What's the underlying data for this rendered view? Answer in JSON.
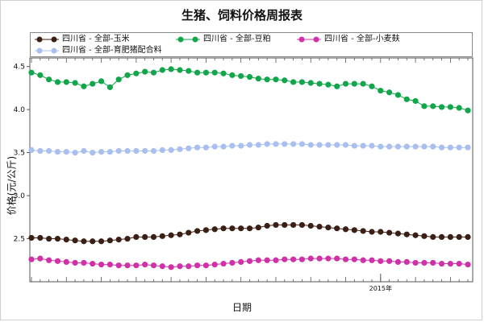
{
  "chart_data": {
    "type": "line",
    "title": "生猪、饲料价格周报表",
    "xlabel": "日期",
    "ylabel": "价格(元/公斤)",
    "ylim": [
      2.0,
      4.6
    ],
    "yticks": [
      "2.5",
      "3.0",
      "3.5",
      "4.0",
      "4.5"
    ],
    "xticks": [
      {
        "label": "2015年",
        "index": 40
      }
    ],
    "grid": false,
    "legend": "top",
    "series": [
      {
        "name": "四川省 - 全部-玉米",
        "color": "#3b1f14",
        "values": [
          2.51,
          2.51,
          2.5,
          2.5,
          2.49,
          2.48,
          2.47,
          2.47,
          2.47,
          2.48,
          2.49,
          2.5,
          2.52,
          2.52,
          2.52,
          2.53,
          2.54,
          2.55,
          2.57,
          2.59,
          2.6,
          2.61,
          2.62,
          2.62,
          2.62,
          2.62,
          2.63,
          2.65,
          2.66,
          2.66,
          2.66,
          2.66,
          2.65,
          2.64,
          2.63,
          2.62,
          2.61,
          2.6,
          2.59,
          2.58,
          2.58,
          2.57,
          2.56,
          2.55,
          2.54,
          2.53,
          2.52,
          2.52,
          2.52,
          2.52,
          2.52
        ]
      },
      {
        "name": "四川省 - 全部-豆粕",
        "color": "#12a64a",
        "values": [
          4.43,
          4.4,
          4.35,
          4.32,
          4.32,
          4.31,
          4.27,
          4.3,
          4.33,
          4.26,
          4.35,
          4.4,
          4.42,
          4.44,
          4.43,
          4.46,
          4.47,
          4.46,
          4.45,
          4.43,
          4.43,
          4.43,
          4.42,
          4.4,
          4.39,
          4.38,
          4.36,
          4.35,
          4.35,
          4.34,
          4.32,
          4.32,
          4.31,
          4.3,
          4.29,
          4.27,
          4.3,
          4.3,
          4.3,
          4.27,
          4.22,
          4.2,
          4.17,
          4.12,
          4.1,
          4.04,
          4.04,
          4.03,
          4.03,
          4.02,
          3.99
        ]
      },
      {
        "name": "四川省 - 全部-小麦麸",
        "color": "#d030a8",
        "values": [
          2.26,
          2.27,
          2.25,
          2.24,
          2.23,
          2.22,
          2.22,
          2.21,
          2.2,
          2.2,
          2.19,
          2.19,
          2.19,
          2.2,
          2.19,
          2.18,
          2.17,
          2.18,
          2.18,
          2.19,
          2.19,
          2.2,
          2.21,
          2.22,
          2.23,
          2.24,
          2.25,
          2.25,
          2.25,
          2.26,
          2.26,
          2.26,
          2.27,
          2.27,
          2.27,
          2.27,
          2.26,
          2.26,
          2.25,
          2.25,
          2.24,
          2.24,
          2.23,
          2.23,
          2.22,
          2.22,
          2.22,
          2.21,
          2.21,
          2.21,
          2.2
        ]
      },
      {
        "name": "四川省 - 全部-育肥猪配合料",
        "color": "#a9bff0",
        "values": [
          3.53,
          3.52,
          3.52,
          3.51,
          3.51,
          3.5,
          3.52,
          3.5,
          3.51,
          3.51,
          3.52,
          3.52,
          3.52,
          3.52,
          3.52,
          3.53,
          3.53,
          3.54,
          3.55,
          3.56,
          3.56,
          3.57,
          3.57,
          3.58,
          3.58,
          3.59,
          3.59,
          3.6,
          3.6,
          3.6,
          3.6,
          3.6,
          3.59,
          3.59,
          3.59,
          3.59,
          3.59,
          3.58,
          3.58,
          3.58,
          3.57,
          3.57,
          3.57,
          3.57,
          3.57,
          3.57,
          3.57,
          3.56,
          3.56,
          3.56,
          3.56
        ]
      }
    ]
  }
}
